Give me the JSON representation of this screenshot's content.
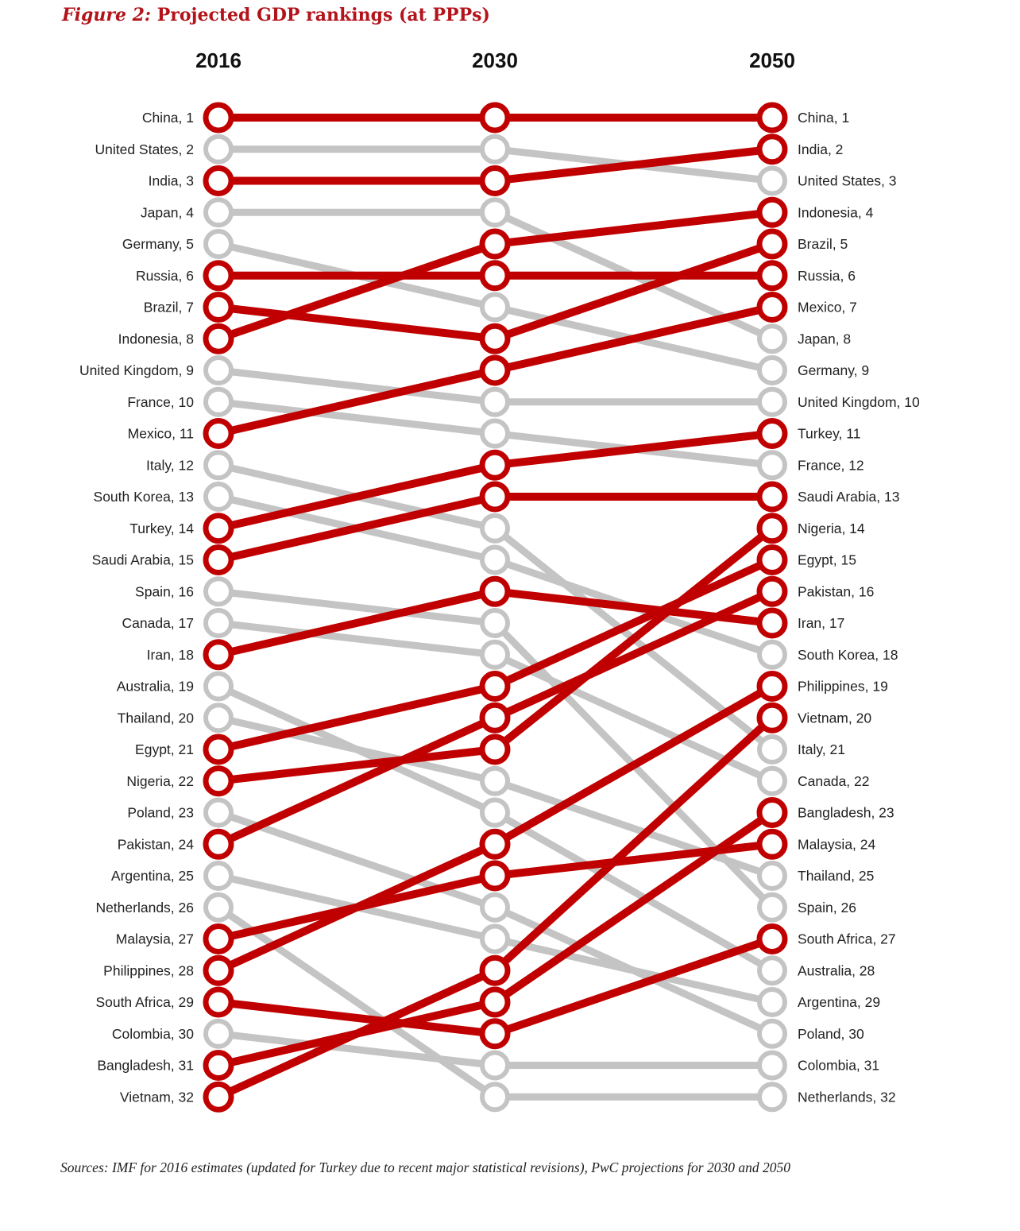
{
  "title": {
    "label": "Figure 2:",
    "text": "Projected GDP rankings (at PPPs)"
  },
  "source": "Sources: IMF for 2016 estimates (updated for Turkey due to recent major statistical revisions), PwC projections for 2030 and 2050",
  "colors": {
    "highlight": "#c00000",
    "muted": "#c4c4c4",
    "node_fill": "#ffffff"
  },
  "chart_data": {
    "type": "bump",
    "columns": [
      "2016",
      "2030",
      "2050"
    ],
    "y_axis": "rank (1 = largest)",
    "ranks_range": [
      1,
      32
    ],
    "series": [
      {
        "name": "China",
        "ranks": [
          1,
          1,
          1
        ],
        "highlight": true
      },
      {
        "name": "United States",
        "ranks": [
          2,
          2,
          3
        ],
        "highlight": false
      },
      {
        "name": "India",
        "ranks": [
          3,
          3,
          2
        ],
        "highlight": true
      },
      {
        "name": "Japan",
        "ranks": [
          4,
          4,
          8
        ],
        "highlight": false
      },
      {
        "name": "Germany",
        "ranks": [
          5,
          7,
          9
        ],
        "highlight": false
      },
      {
        "name": "Russia",
        "ranks": [
          6,
          6,
          6
        ],
        "highlight": true
      },
      {
        "name": "Brazil",
        "ranks": [
          7,
          8,
          5
        ],
        "highlight": true
      },
      {
        "name": "Indonesia",
        "ranks": [
          8,
          5,
          4
        ],
        "highlight": true
      },
      {
        "name": "United Kingdom",
        "ranks": [
          9,
          10,
          10
        ],
        "highlight": false
      },
      {
        "name": "France",
        "ranks": [
          10,
          11,
          12
        ],
        "highlight": false
      },
      {
        "name": "Mexico",
        "ranks": [
          11,
          9,
          7
        ],
        "highlight": true
      },
      {
        "name": "Italy",
        "ranks": [
          12,
          14,
          21
        ],
        "highlight": false
      },
      {
        "name": "South Korea",
        "ranks": [
          13,
          15,
          18
        ],
        "highlight": false
      },
      {
        "name": "Turkey",
        "ranks": [
          14,
          12,
          11
        ],
        "highlight": true
      },
      {
        "name": "Saudi Arabia",
        "ranks": [
          15,
          13,
          13
        ],
        "highlight": true
      },
      {
        "name": "Spain",
        "ranks": [
          16,
          17,
          26
        ],
        "highlight": false
      },
      {
        "name": "Canada",
        "ranks": [
          17,
          18,
          22
        ],
        "highlight": false
      },
      {
        "name": "Iran",
        "ranks": [
          18,
          16,
          17
        ],
        "highlight": true
      },
      {
        "name": "Australia",
        "ranks": [
          19,
          23,
          28
        ],
        "highlight": false
      },
      {
        "name": "Thailand",
        "ranks": [
          20,
          22,
          25
        ],
        "highlight": false
      },
      {
        "name": "Egypt",
        "ranks": [
          21,
          19,
          15
        ],
        "highlight": true
      },
      {
        "name": "Nigeria",
        "ranks": [
          22,
          21,
          14
        ],
        "highlight": true
      },
      {
        "name": "Poland",
        "ranks": [
          23,
          26,
          30
        ],
        "highlight": false
      },
      {
        "name": "Pakistan",
        "ranks": [
          24,
          20,
          16
        ],
        "highlight": true
      },
      {
        "name": "Argentina",
        "ranks": [
          25,
          27,
          29
        ],
        "highlight": false
      },
      {
        "name": "Netherlands",
        "ranks": [
          26,
          32,
          32
        ],
        "highlight": false
      },
      {
        "name": "Malaysia",
        "ranks": [
          27,
          25,
          24
        ],
        "highlight": true
      },
      {
        "name": "Philippines",
        "ranks": [
          28,
          24,
          19
        ],
        "highlight": true
      },
      {
        "name": "South Africa",
        "ranks": [
          29,
          30,
          27
        ],
        "highlight": true
      },
      {
        "name": "Colombia",
        "ranks": [
          30,
          31,
          31
        ],
        "highlight": false
      },
      {
        "name": "Bangladesh",
        "ranks": [
          31,
          29,
          23
        ],
        "highlight": true
      },
      {
        "name": "Vietnam",
        "ranks": [
          32,
          28,
          20
        ],
        "highlight": true
      }
    ]
  }
}
